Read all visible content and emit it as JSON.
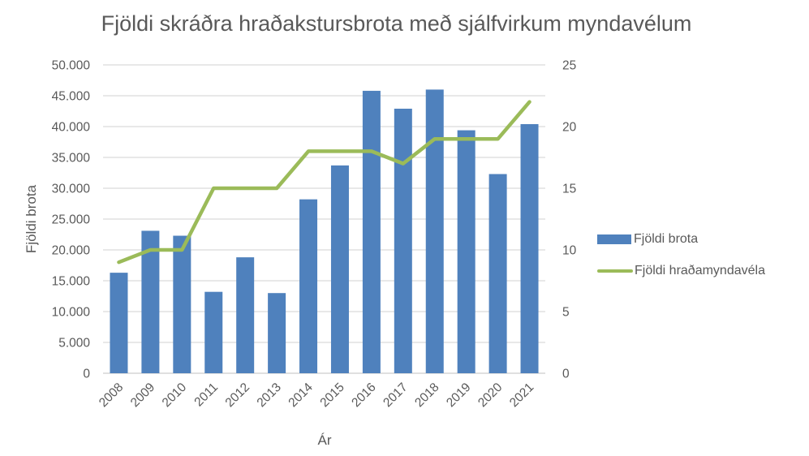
{
  "chart_data": {
    "type": "bar",
    "title": "Fjöldi skráðra hraðakstursbrota með sjálfvirkum myndavélum",
    "xlabel": "Ár",
    "ylabel": "Fjöldi brota",
    "y2label": "",
    "categories": [
      "2008",
      "2009",
      "2010",
      "2011",
      "2012",
      "2013",
      "2014",
      "2015",
      "2016",
      "2017",
      "2018",
      "2019",
      "2020",
      "2021"
    ],
    "series": [
      {
        "name": "Fjöldi brota",
        "type": "bar",
        "axis": "left",
        "color": "#4F81BD",
        "values": [
          16300,
          23100,
          22300,
          13200,
          18800,
          13000,
          28200,
          33700,
          45800,
          42900,
          46000,
          39400,
          32300,
          40400
        ]
      },
      {
        "name": "Fjöldi hraðamyndavéla",
        "type": "line",
        "axis": "right",
        "color": "#9BBB59",
        "values": [
          9,
          10,
          10,
          15,
          15,
          15,
          18,
          18,
          18,
          17,
          19,
          19,
          19,
          22
        ]
      }
    ],
    "ylim": [
      0,
      50000
    ],
    "y2lim": [
      0,
      25
    ],
    "yticks": [
      "0",
      "5.000",
      "10.000",
      "15.000",
      "20.000",
      "25.000",
      "30.000",
      "35.000",
      "40.000",
      "45.000",
      "50.000"
    ],
    "y2ticks": [
      "0",
      "5",
      "10",
      "15",
      "20",
      "25"
    ],
    "grid": true,
    "legend_position": "right"
  }
}
